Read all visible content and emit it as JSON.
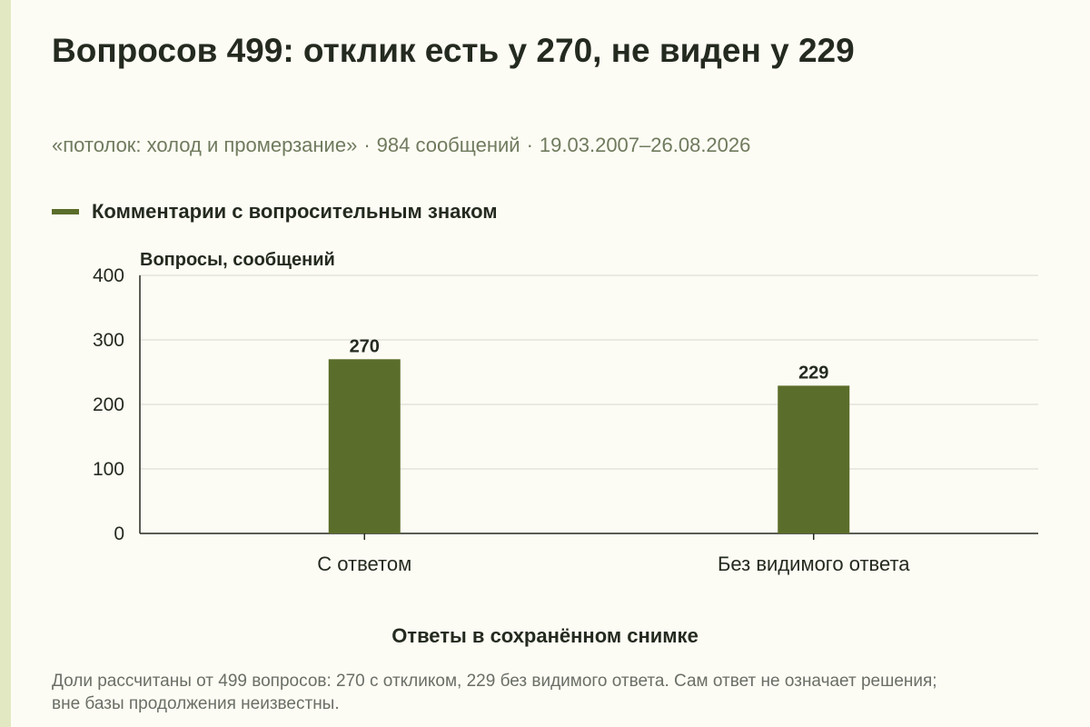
{
  "header": {
    "title": "Вопросов 499: отклик есть у 270, не виден у 229",
    "subtitle": {
      "topic": "«потолок: холод и промерзание»",
      "messages": "984 сообщений",
      "date_range": "19.03.2007–26.08.2026"
    }
  },
  "legend": {
    "label": "Комментарии с вопросительным знаком"
  },
  "colors": {
    "bar": "#5b6d2a",
    "grid": "#d6d8cf",
    "axis": "#242a1f",
    "background": "#fdfcf4"
  },
  "chart_data": {
    "type": "bar",
    "categories": [
      "С ответом",
      "Без видимого ответа"
    ],
    "series": [
      {
        "name": "Комментарии с вопросительным знаком",
        "values": [
          270,
          229
        ]
      }
    ],
    "ylabel": "Вопросы, сообщений",
    "xlabel": "Ответы в сохранённом снимке",
    "ylim": [
      0,
      400
    ],
    "yticks": [
      0,
      100,
      200,
      300,
      400
    ],
    "data_labels": [
      "270",
      "229"
    ],
    "grid": true,
    "legend_position": "top-left"
  },
  "footnote": "Доли рассчитаны от 499 вопросов: 270 с откликом, 229 без видимого ответа. Сам ответ не означает решения; вне базы продолжения неизвестны."
}
